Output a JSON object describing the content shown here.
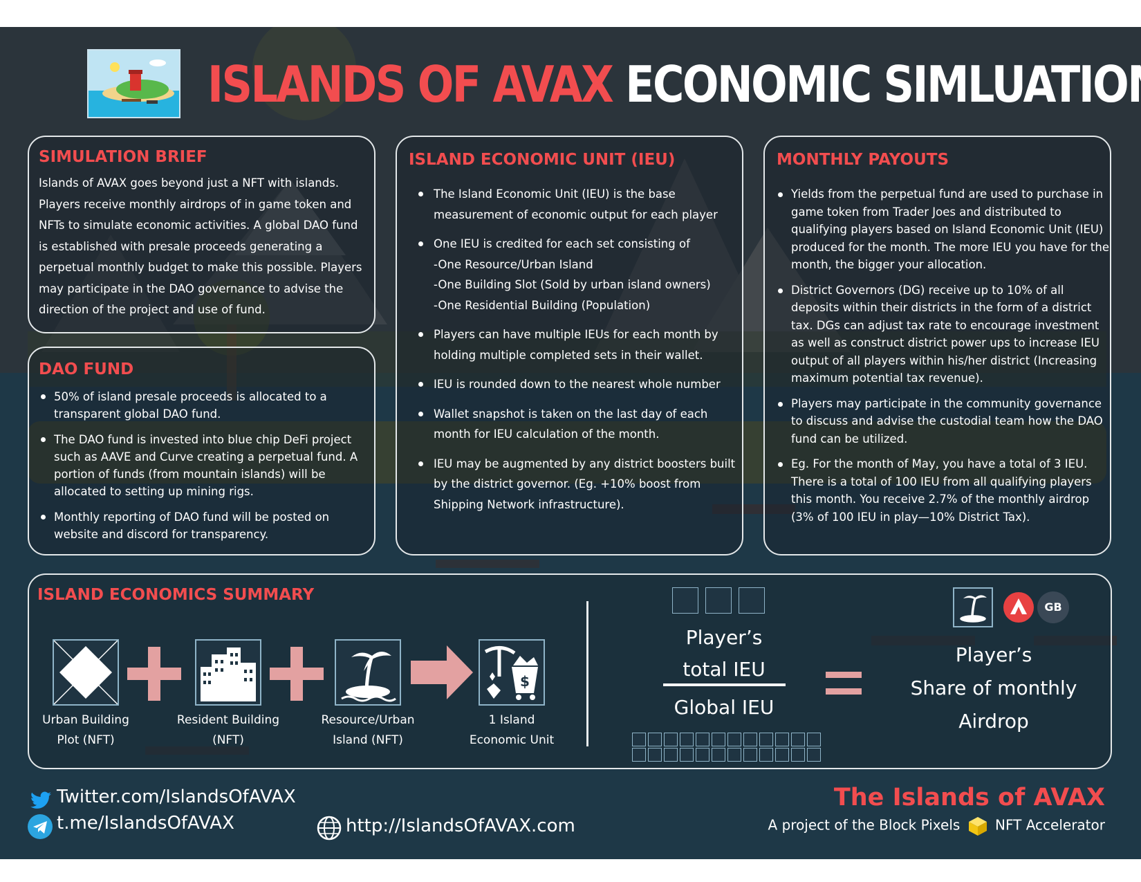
{
  "header": {
    "title_red": "ISLANDS OF AVAX",
    "title_white": "ECONOMIC SIMLUATION"
  },
  "brief": {
    "heading": "SIMULATION BRIEF",
    "body": "Islands of AVAX goes beyond just a NFT with islands. Players receive monthly airdrops of in game token and NFTs to simulate economic activities. A global DAO fund is established with presale proceeds generating a perpetual monthly budget to make this possible. Players may participate in the DAO governance to advise the direction of the project and use of fund."
  },
  "dao": {
    "heading": "DAO FUND",
    "items": [
      "50% of island presale proceeds is allocated to a transparent global DAO fund.",
      "The DAO fund is invested into blue chip DeFi project such as AAVE and Curve creating a perpetual fund. A portion of funds (from mountain islands) will be allocated to setting up mining  rigs.",
      "Monthly reporting of DAO fund will be posted on website and discord for transparency."
    ]
  },
  "ieu": {
    "heading": "ISLAND ECONOMIC UNIT (IEU)",
    "item1": "The Island Economic Unit (IEU) is the base measurement of economic output for each player",
    "item2": {
      "line1": "One IEU is credited for each set consisting of",
      "line2": "-One Resource/Urban Island",
      "line3": "-One Building Slot (Sold by urban island owners)",
      "line4": "-One Residential Building (Population)"
    },
    "item3": "Players can have multiple IEUs for each month by holding multiple completed sets in their wallet.",
    "item4": "IEU is rounded down to the nearest whole number",
    "item5": "Wallet snapshot is taken on the last day of each month for IEU calculation of the month.",
    "item6": "IEU may be augmented by any district boosters built by the district governor. (Eg. +10% boost from Shipping Network infrastructure)."
  },
  "payouts": {
    "heading": "MONTHLY PAYOUTS",
    "items": [
      "Yields from the perpetual fund are used to purchase in game token from Trader Joes and distributed to qualifying players based on Island Economic Unit (IEU) produced for the month. The more IEU you have for the month, the bigger your allocation.",
      "District Governors (DG) receive up to 10% of all deposits within their districts in the form of a district tax. DGs can adjust tax rate to encourage investment as well as construct district power ups to increase IEU output of all players within his/her district (Increasing maximum potential tax revenue).",
      "Players may participate in the community governance to discuss and advise the custodial team how the DAO fund can be utilized.",
      "Eg. For the month of May, you have a total of 3 IEU. There is a total of 100 IEU from all qualifying players this month. You receive 2.7% of the monthly airdrop (3% of 100 IEU in play—10% District Tax)."
    ]
  },
  "summary": {
    "heading": "ISLAND ECONOMICS SUMMARY",
    "urban_plot": {
      "line1": "Urban Building",
      "line2": "Plot (NFT)"
    },
    "resident": {
      "line1": "Resident Building",
      "line2": "(NFT)"
    },
    "island": {
      "line1": "Resource/Urban",
      "line2": "Island (NFT)"
    },
    "unit": {
      "line1": "1 Island",
      "line2": "Economic Unit"
    },
    "numerator": {
      "line1": "Player’s",
      "line2": "total IEU"
    },
    "denominator": "Global IEU",
    "result": {
      "line1": "Player’s",
      "line2": "Share of monthly",
      "line3": "Airdrop"
    },
    "gb_badge": "GB"
  },
  "footer": {
    "twitter": "Twitter.com/IslandsOfAVAX",
    "telegram": "t.me/IslandsOfAVAX",
    "website": "http://IslandsOfAVAX.com",
    "brand": "The Islands of AVAX",
    "tagline_pre": "A project of the Block Pixels",
    "tagline_post": "NFT Accelerator"
  },
  "colors": {
    "accent_red": "#f24d4f",
    "background": "#273037",
    "operator_pink": "#e3a1a1"
  }
}
